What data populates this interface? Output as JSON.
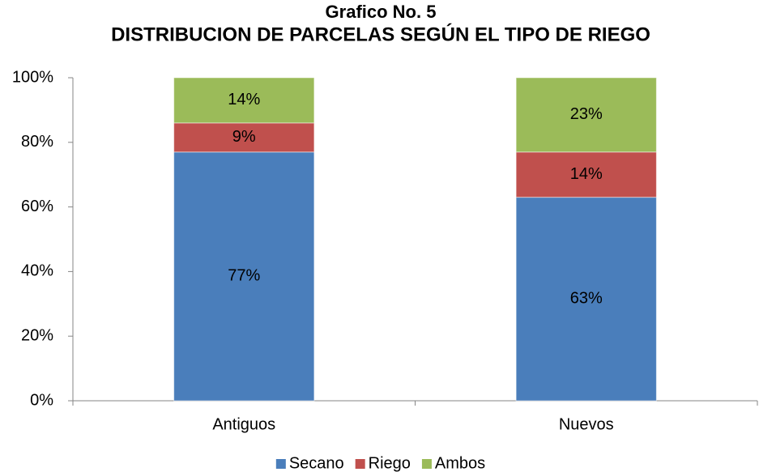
{
  "chart_data": {
    "type": "stacked_bar",
    "title": "Grafico No. 5",
    "subtitle": "DISTRIBUCION DE PARCELAS SEGÚN EL TIPO DE RIEGO",
    "categories": [
      "Antiguos",
      "Nuevos"
    ],
    "series": [
      {
        "name": "Secano",
        "color": "#4a7ebb",
        "values": [
          77,
          63
        ],
        "value_labels": [
          "77%",
          "63%"
        ]
      },
      {
        "name": "Riego",
        "color": "#c0504d",
        "values": [
          9,
          14
        ],
        "value_labels": [
          "9%",
          "14%"
        ]
      },
      {
        "name": "Ambos",
        "color": "#9bbb59",
        "values": [
          14,
          23
        ],
        "value_labels": [
          "14%",
          "23%"
        ]
      }
    ],
    "ylim": [
      0,
      100
    ],
    "yticks": [
      {
        "value": 0,
        "label": "0%"
      },
      {
        "value": 20,
        "label": "20%"
      },
      {
        "value": 40,
        "label": "40%"
      },
      {
        "value": 60,
        "label": "60%"
      },
      {
        "value": 80,
        "label": "80%"
      },
      {
        "value": 100,
        "label": "100%"
      }
    ],
    "grid": false,
    "legend": "bottom"
  }
}
